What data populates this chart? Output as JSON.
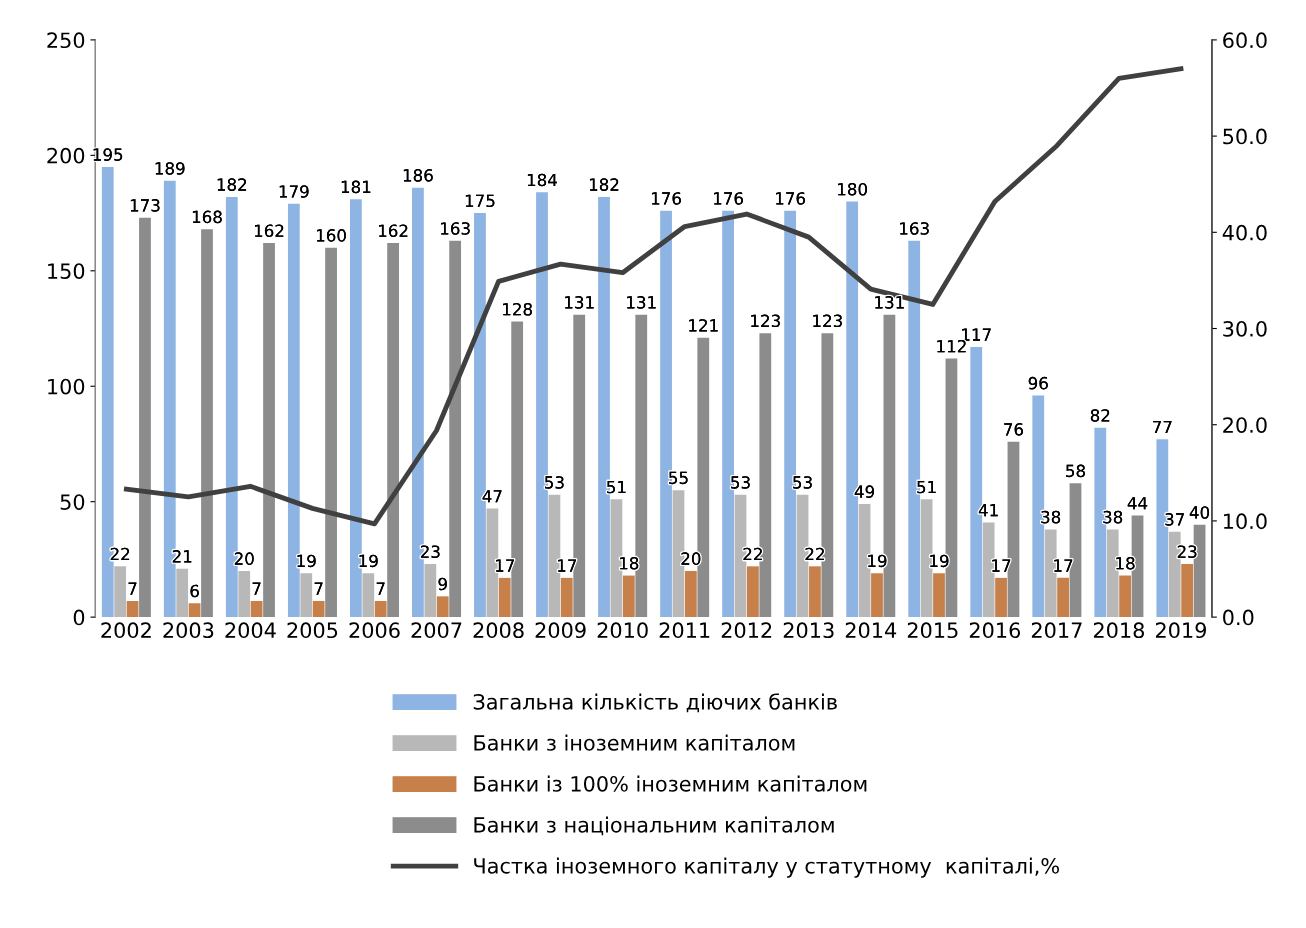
{
  "chart_data": {
    "type": "bar",
    "categories": [
      "2002",
      "2003",
      "2004",
      "2005",
      "2006",
      "2007",
      "2008",
      "2009",
      "2010",
      "2011",
      "2012",
      "2013",
      "2014",
      "2015",
      "2016",
      "2017",
      "2018",
      "2019"
    ],
    "series": [
      {
        "name": "Загальна кількість діючих банків",
        "color": "#8eb4e3",
        "values": [
          195,
          189,
          182,
          179,
          181,
          186,
          175,
          184,
          182,
          176,
          176,
          176,
          180,
          163,
          117,
          96,
          82,
          77
        ],
        "value_labels": [
          "195",
          "189",
          "182",
          "179",
          "181",
          "186",
          "175",
          "184",
          "182",
          "176",
          "176",
          "176",
          "180",
          "163",
          "117",
          "96",
          "82",
          "77"
        ]
      },
      {
        "name": "Банки з іноземним капіталом",
        "color": "#b8b8b8",
        "values": [
          22,
          21,
          20,
          19,
          19,
          23,
          47,
          53,
          51,
          55,
          53,
          53,
          49,
          51,
          41,
          38,
          38,
          37
        ],
        "value_labels": [
          "22",
          "21",
          "20",
          "19",
          "19",
          "23",
          "47",
          "53",
          "51",
          "55",
          "53",
          "53",
          "49",
          "51",
          "41",
          "38",
          "38",
          "37"
        ]
      },
      {
        "name": "Банки із 100% іноземним капіталом",
        "color": "#c8804a",
        "values": [
          7,
          6,
          7,
          7,
          7,
          9,
          17,
          17,
          18,
          20,
          22,
          22,
          19,
          19,
          17,
          17,
          18,
          23
        ],
        "value_labels": [
          "7",
          "6",
          "7",
          "7",
          "7",
          "9",
          "17",
          "17",
          "18",
          "20",
          "22",
          "22",
          "19",
          "19",
          "17",
          "17",
          "18",
          "23"
        ]
      },
      {
        "name": "Банки з національним капіталом",
        "color": "#8c8c8c",
        "values": [
          173,
          168,
          162,
          160,
          162,
          163,
          128,
          131,
          131,
          121,
          123,
          123,
          131,
          112,
          76,
          58,
          44,
          40
        ],
        "value_labels": [
          "173",
          "168",
          "162",
          "160",
          "162",
          "163",
          "128",
          "131",
          "131",
          "121",
          "123",
          "123",
          "131",
          "112",
          "76",
          "58",
          "44",
          "40"
        ]
      },
      {
        "name": "Частка іноземного капіталу у статутному  капіталі,%",
        "color": "#404040",
        "type": "line",
        "axis": "y2",
        "values": [
          13.3,
          12.5,
          13.6,
          11.3,
          9.7,
          19.4,
          34.9,
          36.7,
          35.8,
          40.6,
          41.9,
          39.5,
          34.1,
          32.5,
          43.2,
          49.0,
          56.0,
          57.0
        ]
      }
    ],
    "ylim": [
      0,
      250
    ],
    "yticks": [
      0,
      50,
      100,
      150,
      200,
      250
    ],
    "y2lim": [
      0,
      60
    ],
    "y2ticks": [
      {
        "value": 0,
        "label": "0.0"
      },
      {
        "value": 10,
        "label": "10.0"
      },
      {
        "value": 20,
        "label": "20.0"
      },
      {
        "value": 30,
        "label": "30.0"
      },
      {
        "value": 40,
        "label": "40.0"
      },
      {
        "value": 50,
        "label": "50.0"
      },
      {
        "value": 60,
        "label": "60.0"
      }
    ],
    "legend": "bottom",
    "grid": false,
    "marker": "none",
    "line_style": "solid"
  }
}
